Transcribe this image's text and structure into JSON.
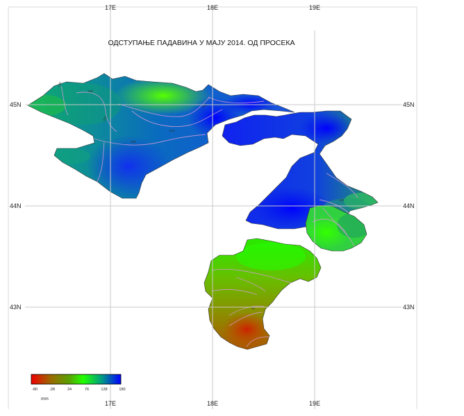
{
  "map": {
    "title": "ОДСТУПАЊЕ ПАДАВИНА У МАЈУ 2014. ОД ПРОСЕКА",
    "longitude_labels": [
      "17E",
      "18E",
      "19E"
    ],
    "latitude_labels": [
      "45N",
      "44N",
      "43N"
    ],
    "legend": {
      "unit": "mm",
      "ticks": [
        "-80",
        "-28",
        "24",
        "76",
        "128",
        "180"
      ],
      "colors": [
        "#ee0000",
        "#9a8a00",
        "#22ff00",
        "#00aa99",
        "#0000ff"
      ]
    },
    "contour_labels": [
      "130",
      "130",
      "110",
      "120",
      "140",
      "130",
      "110",
      "40"
    ]
  }
}
